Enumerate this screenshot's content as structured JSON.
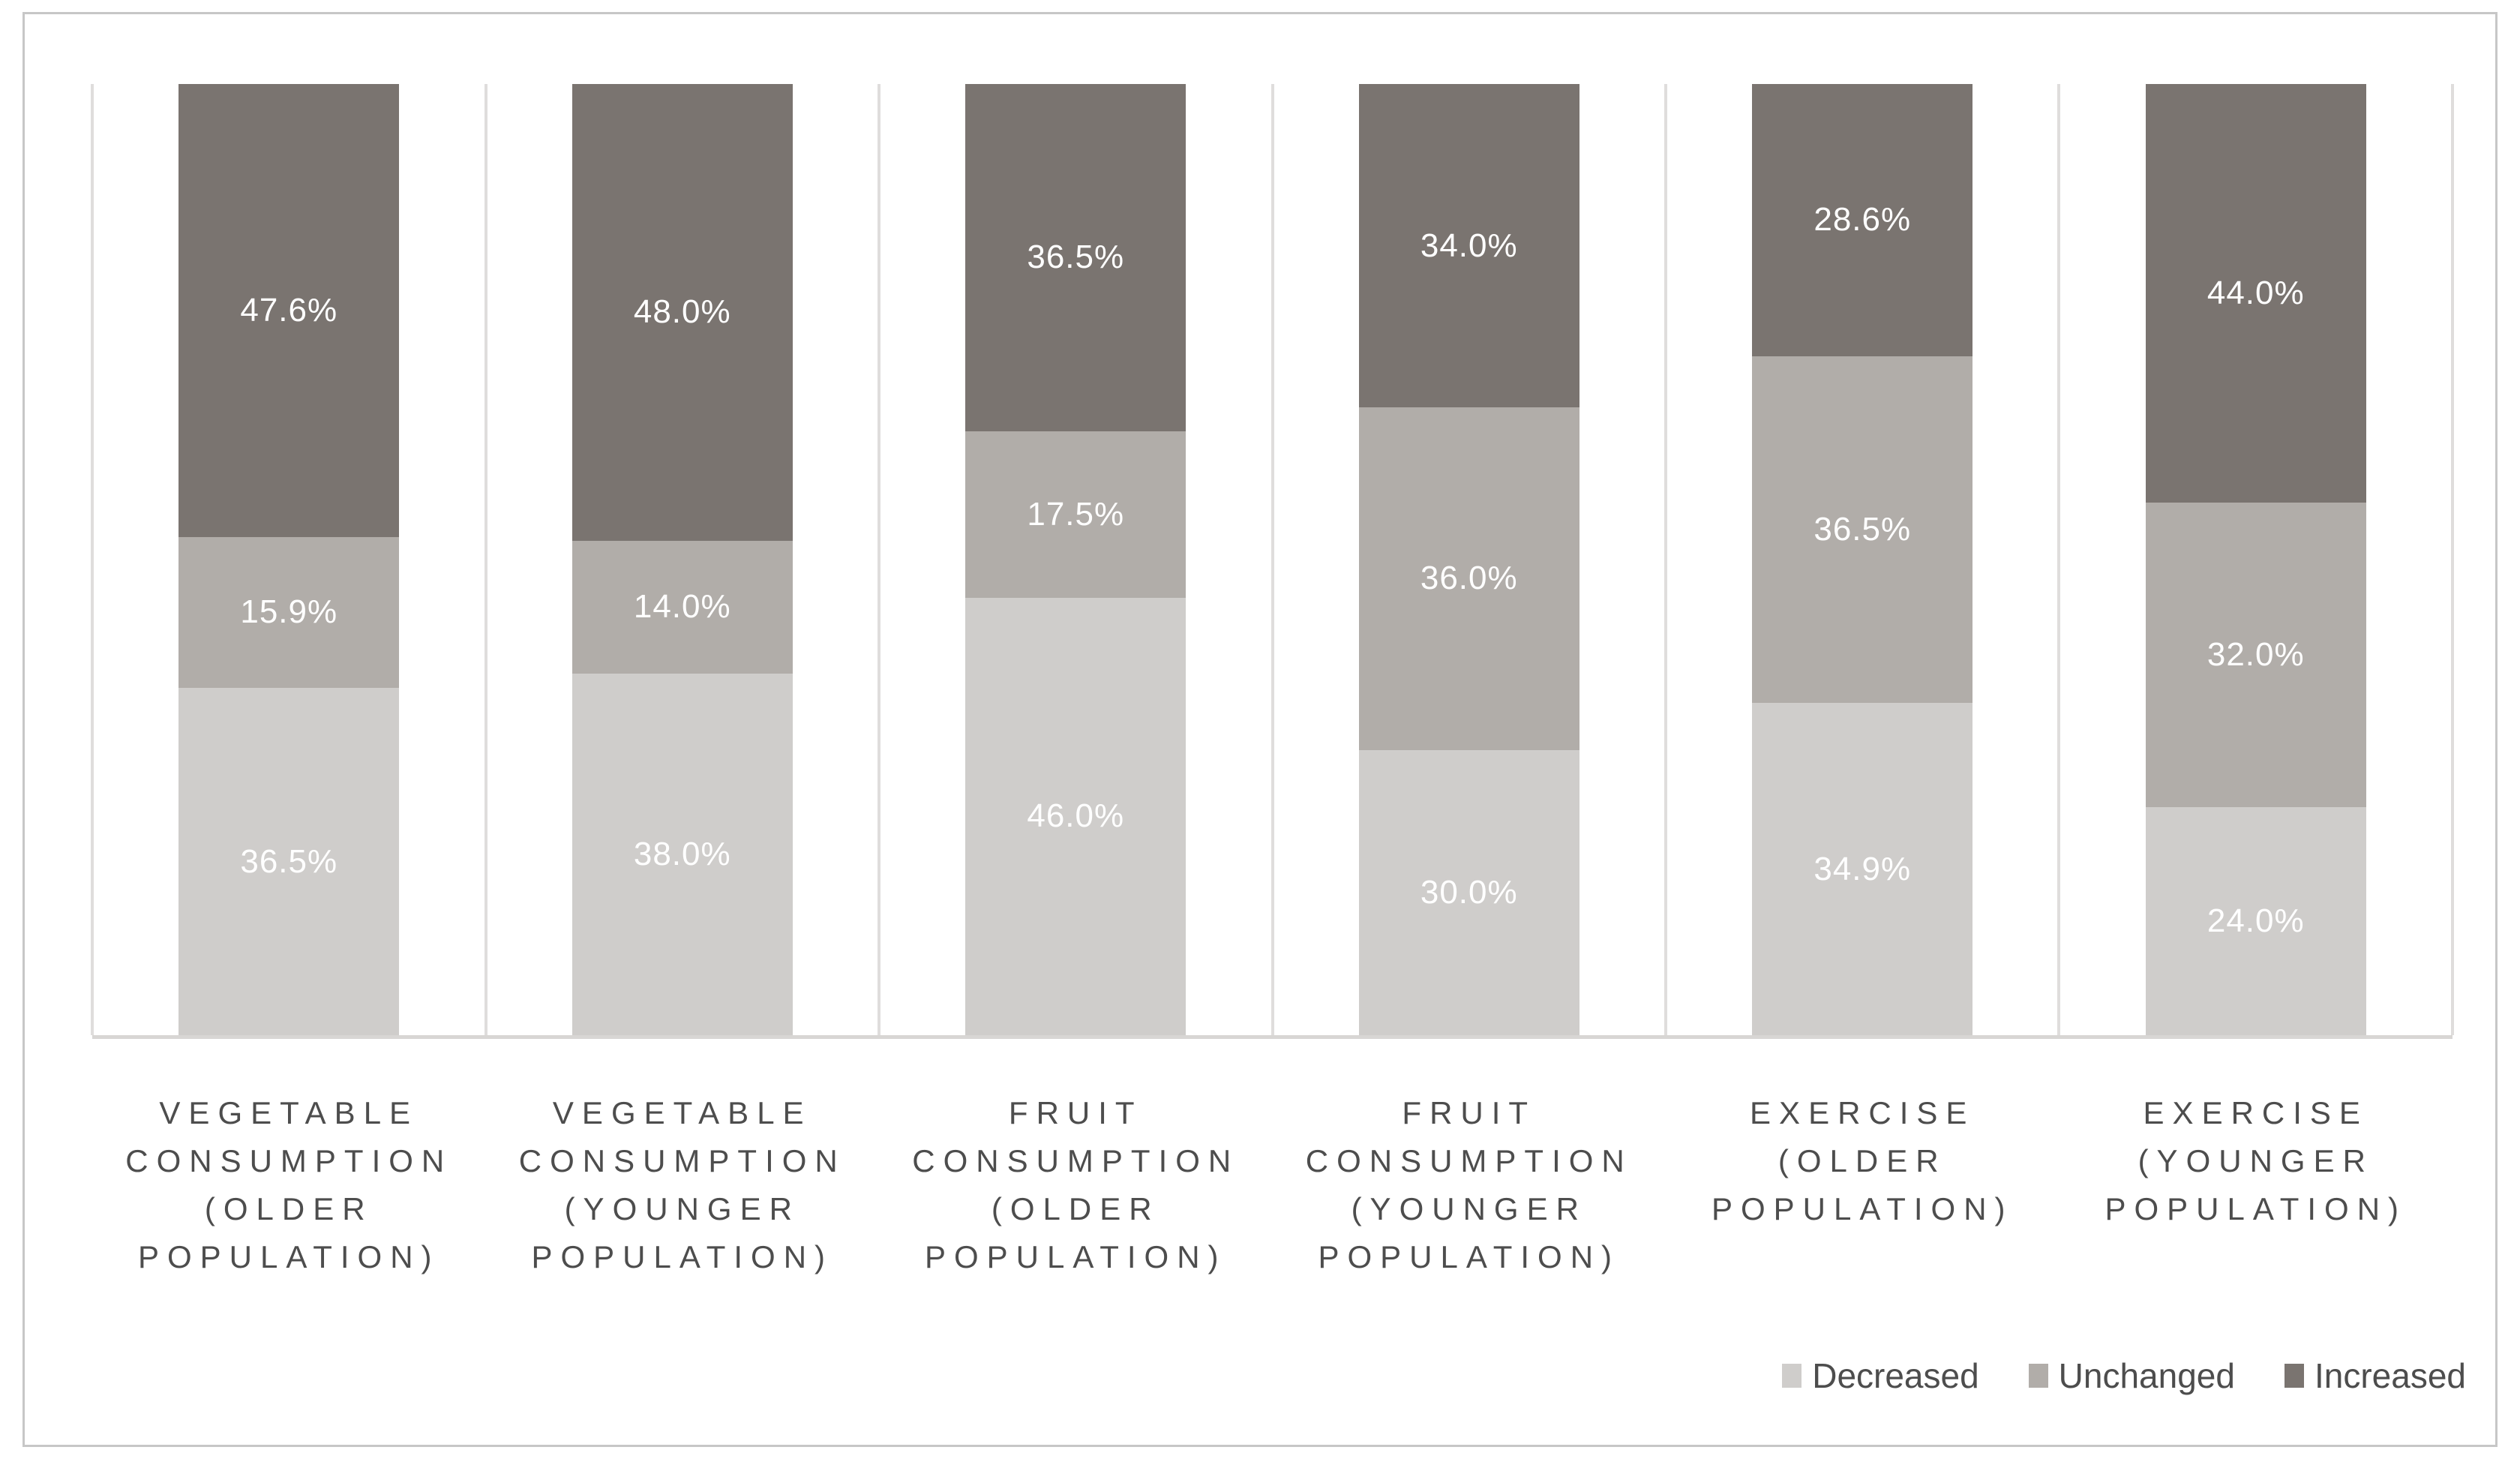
{
  "chart_data": {
    "type": "bar",
    "subtype": "stacked-100-percent-column",
    "title": "",
    "xlabel": "",
    "ylabel": "",
    "ylim": [
      0,
      100
    ],
    "grid": "vertical-category-separators",
    "legend_position": "bottom-right",
    "series_order": [
      "decreased",
      "unchanged",
      "increased"
    ],
    "colors": {
      "decreased": "#cfcdcb",
      "unchanged": "#b1ada9",
      "increased": "#7a7470"
    },
    "legend": [
      {
        "series": "decreased",
        "label": "Decreased"
      },
      {
        "series": "unchanged",
        "label": "Unchanged"
      },
      {
        "series": "increased",
        "label": "Increased"
      }
    ],
    "categories": [
      {
        "label": "VEGETABLE\nCONSUMPTION\n(OLDER\nPOPULATION)",
        "values": {
          "decreased": 36.5,
          "unchanged": 15.9,
          "increased": 47.6
        },
        "labels": {
          "decreased": "36.5%",
          "unchanged": "15.9%",
          "increased": "47.6%"
        }
      },
      {
        "label": "VEGETABLE\nCONSUMPTION\n(YOUNGER\nPOPULATION)",
        "values": {
          "decreased": 38.0,
          "unchanged": 14.0,
          "increased": 48.0
        },
        "labels": {
          "decreased": "38.0%",
          "unchanged": "14.0%",
          "increased": "48.0%"
        }
      },
      {
        "label": "FRUIT\nCONSUMPTION\n(OLDER\nPOPULATION)",
        "values": {
          "decreased": 46.0,
          "unchanged": 17.5,
          "increased": 36.5
        },
        "labels": {
          "decreased": "46.0%",
          "unchanged": "17.5%",
          "increased": "36.5%"
        }
      },
      {
        "label": "FRUIT\nCONSUMPTION\n(YOUNGER\nPOPULATION)",
        "values": {
          "decreased": 30.0,
          "unchanged": 36.0,
          "increased": 34.0
        },
        "labels": {
          "decreased": "30.0%",
          "unchanged": "36.0%",
          "increased": "34.0%"
        }
      },
      {
        "label": "EXERCISE\n(OLDER\nPOPULATION)",
        "values": {
          "decreased": 34.9,
          "unchanged": 36.5,
          "increased": 28.6
        },
        "labels": {
          "decreased": "34.9%",
          "unchanged": "36.5%",
          "increased": "28.6%"
        }
      },
      {
        "label": "EXERCISE\n(YOUNGER\nPOPULATION)",
        "values": {
          "decreased": 24.0,
          "unchanged": 32.0,
          "increased": 44.0
        },
        "labels": {
          "decreased": "24.0%",
          "unchanged": "32.0%",
          "increased": "44.0%"
        }
      }
    ]
  },
  "style": {
    "gridline_color": "#dfdddc",
    "axis_line_color": "#d8d6d4",
    "figure_border_color": "#c7c7c7",
    "axis_text_color": "#4d4d4d",
    "data_label_color": "#ffffff",
    "background_color": "#ffffff"
  }
}
